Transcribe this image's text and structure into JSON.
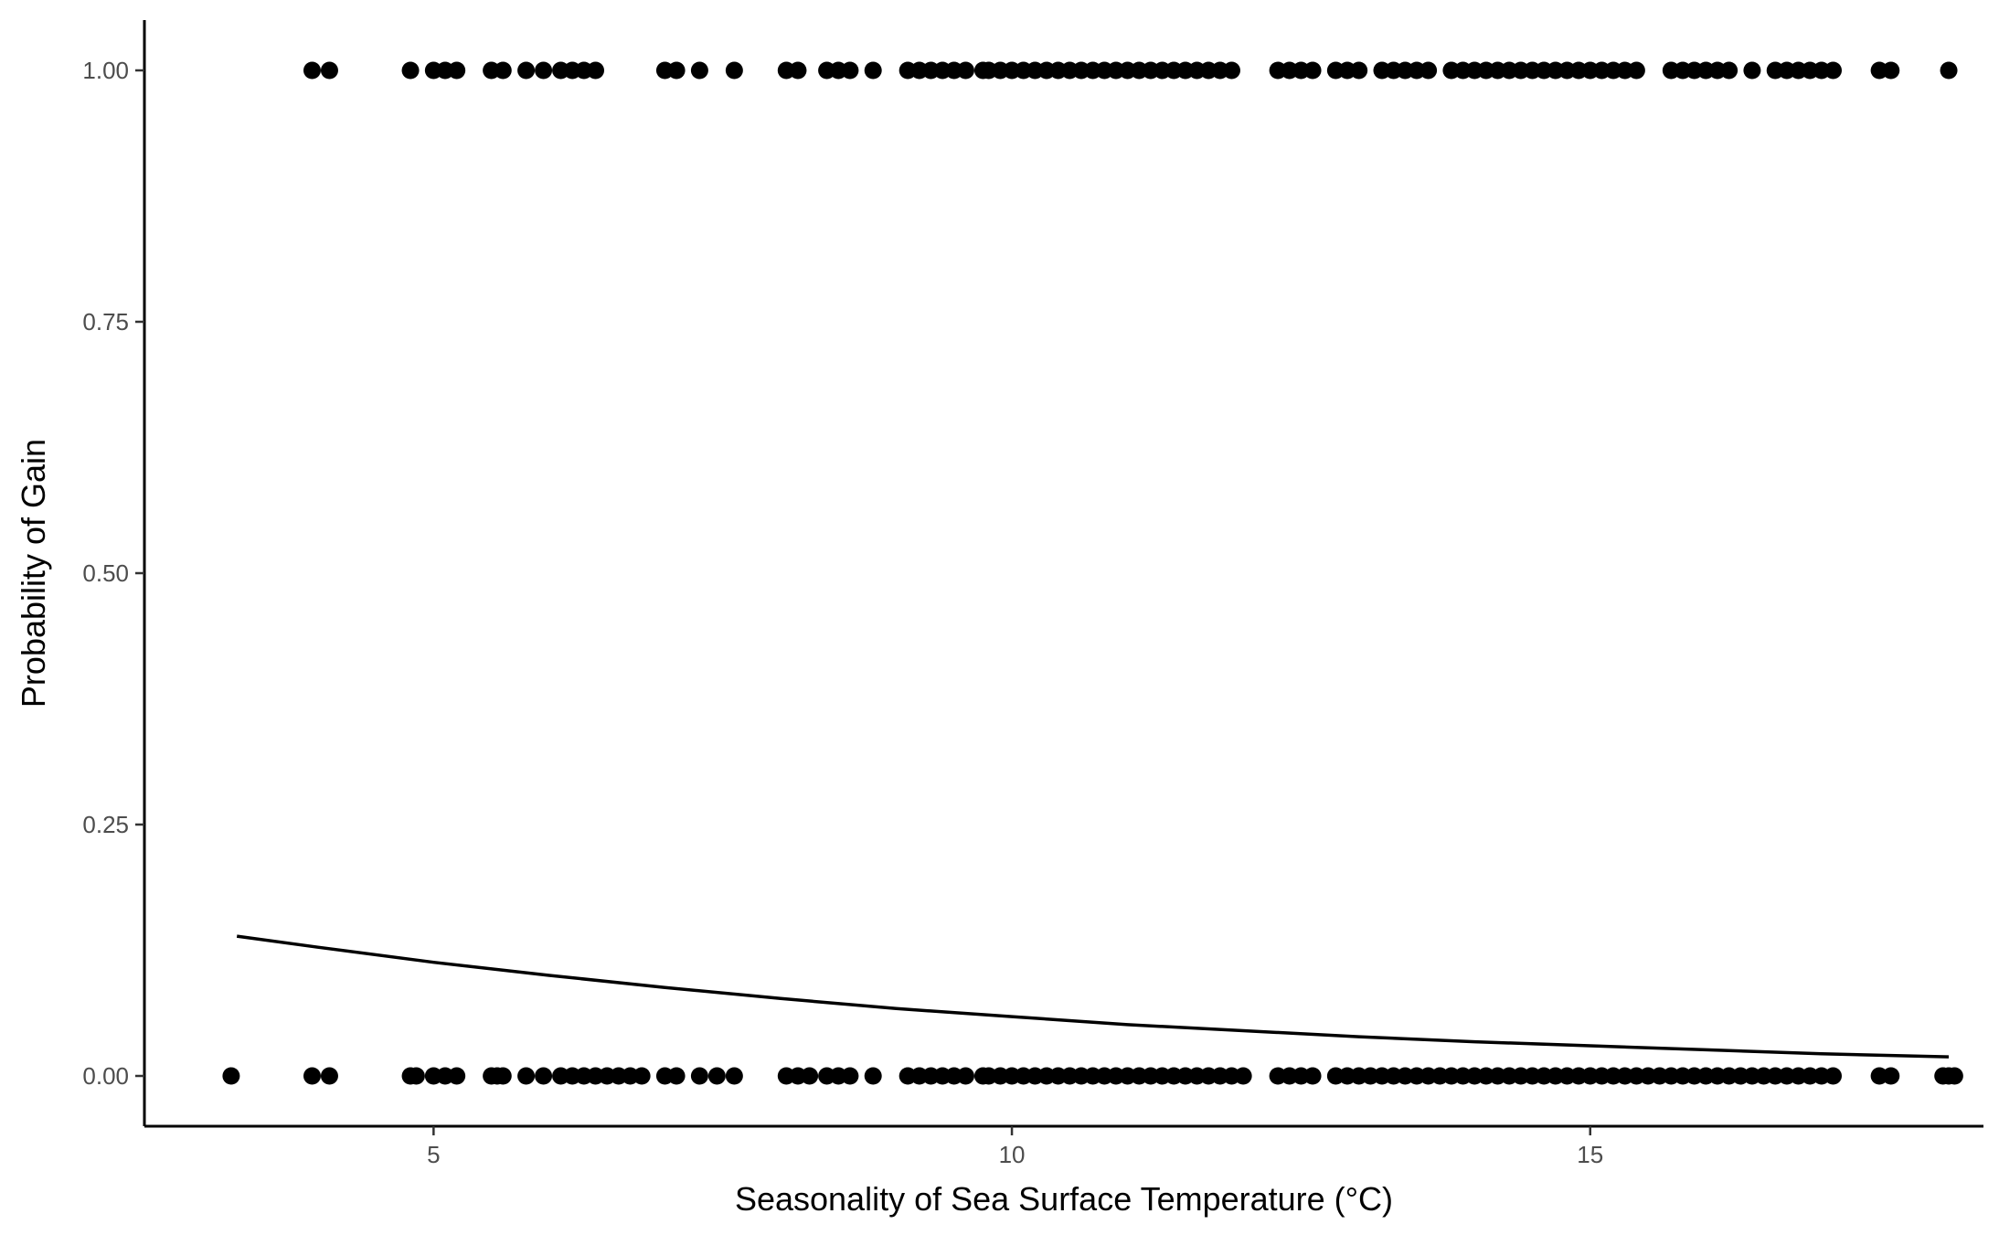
{
  "chart_data": {
    "type": "scatter",
    "title": "",
    "xlabel": "Seasonality of Sea Surface Temperature (°C)",
    "ylabel": "Probability of Gain",
    "xlim": [
      2.5,
      18.4
    ],
    "ylim": [
      -0.05,
      1.05
    ],
    "x_ticks": [
      5,
      10,
      15
    ],
    "x_tick_labels": [
      "5",
      "10",
      "15"
    ],
    "y_ticks": [
      0,
      0.25,
      0.5,
      0.75,
      1
    ],
    "y_tick_labels": [
      "0.00",
      "0.25",
      "0.50",
      "0.75",
      "1.00"
    ],
    "grid": false,
    "legend": "none",
    "point_color": "#000000",
    "line_color": "#000000",
    "series": [
      {
        "kind": "points",
        "y": 1,
        "x": [
          3.95,
          4.1,
          4.8,
          5.0,
          5.1,
          5.2,
          5.5,
          5.6,
          5.8,
          5.95,
          6.1,
          6.2,
          6.3,
          6.4,
          7.0,
          7.1,
          7.3,
          7.6,
          8.05,
          8.15,
          8.4,
          8.5,
          8.6,
          8.8,
          9.1,
          9.2,
          9.3,
          9.4,
          9.5,
          9.6,
          9.75,
          9.8,
          9.9,
          10.0,
          10.1,
          10.2,
          10.3,
          10.4,
          10.5,
          10.6,
          10.7,
          10.8,
          10.9,
          11.0,
          11.1,
          11.2,
          11.3,
          11.4,
          11.5,
          11.6,
          11.7,
          11.8,
          11.9,
          12.3,
          12.4,
          12.5,
          12.6,
          12.8,
          12.9,
          13.0,
          13.2,
          13.3,
          13.4,
          13.5,
          13.6,
          13.8,
          13.9,
          14.0,
          14.1,
          14.2,
          14.3,
          14.4,
          14.5,
          14.6,
          14.7,
          14.8,
          14.9,
          15.0,
          15.1,
          15.2,
          15.3,
          15.4,
          15.7,
          15.8,
          15.9,
          16.0,
          16.1,
          16.2,
          16.4,
          16.6,
          16.7,
          16.8,
          16.9,
          17.0,
          17.1,
          17.5,
          17.6,
          18.1
        ]
      },
      {
        "kind": "points",
        "y": 0,
        "x": [
          3.25,
          3.95,
          4.1,
          4.8,
          4.85,
          5.0,
          5.1,
          5.2,
          5.5,
          5.55,
          5.6,
          5.8,
          5.95,
          6.1,
          6.2,
          6.3,
          6.4,
          6.5,
          6.6,
          6.7,
          6.8,
          7.0,
          7.1,
          7.3,
          7.45,
          7.6,
          8.05,
          8.15,
          8.25,
          8.4,
          8.5,
          8.6,
          8.8,
          9.1,
          9.2,
          9.3,
          9.4,
          9.5,
          9.6,
          9.75,
          9.8,
          9.9,
          10.0,
          10.1,
          10.2,
          10.3,
          10.4,
          10.5,
          10.6,
          10.7,
          10.8,
          10.9,
          11.0,
          11.1,
          11.2,
          11.3,
          11.4,
          11.5,
          11.6,
          11.7,
          11.8,
          11.9,
          12.0,
          12.3,
          12.4,
          12.5,
          12.6,
          12.8,
          12.9,
          13.0,
          13.1,
          13.2,
          13.3,
          13.4,
          13.5,
          13.6,
          13.7,
          13.8,
          13.9,
          14.0,
          14.1,
          14.2,
          14.3,
          14.4,
          14.5,
          14.6,
          14.7,
          14.8,
          14.9,
          15.0,
          15.1,
          15.2,
          15.3,
          15.4,
          15.5,
          15.6,
          15.7,
          15.8,
          15.9,
          16.0,
          16.1,
          16.2,
          16.3,
          16.4,
          16.5,
          16.6,
          16.7,
          16.8,
          16.9,
          17.0,
          17.1,
          17.5,
          17.6,
          18.05,
          18.1,
          18.15
        ]
      },
      {
        "kind": "line",
        "x": [
          3.3,
          4,
          5,
          6,
          7,
          8,
          9,
          10,
          11,
          12,
          13,
          14,
          15,
          16,
          17,
          18.1
        ],
        "y": [
          0.139,
          0.128,
          0.113,
          0.1,
          0.088,
          0.077,
          0.067,
          0.059,
          0.051,
          0.045,
          0.039,
          0.034,
          0.03,
          0.026,
          0.022,
          0.019
        ]
      }
    ]
  }
}
